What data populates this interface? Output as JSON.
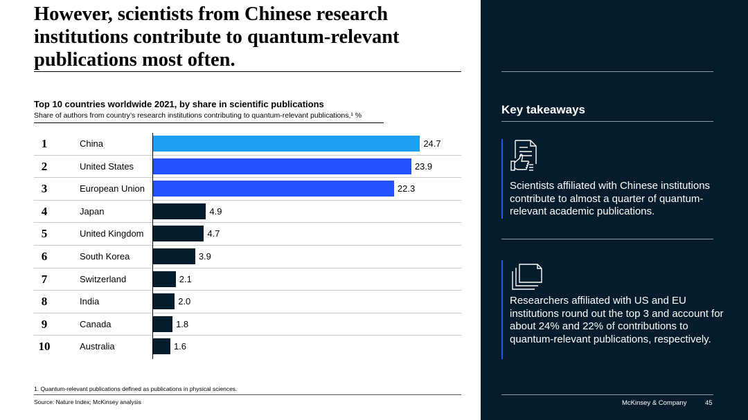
{
  "slide": {
    "headline": "However, scientists from Chinese research institutions contribute to quantum-relevant publications most often.",
    "footnote": "1.  Quantum-relevant publications defined as publications in physical sciences.",
    "source": "Source: Nature Index; McKinsey analysis",
    "brand": "McKinsey & Company",
    "page_number": "45"
  },
  "chart_data": {
    "type": "bar",
    "orientation": "horizontal",
    "title": "Top 10 countries worldwide 2021, by share in scientific publications",
    "subtitle": "Share of authors from country’s research institutions contributing to quantum-relevant publications,¹ %",
    "ranks": [
      "1",
      "2",
      "3",
      "4",
      "5",
      "6",
      "7",
      "8",
      "9",
      "10"
    ],
    "categories": [
      "China",
      "United States",
      "European Union",
      "Japan",
      "United Kingdom",
      "South Korea",
      "Switzerland",
      "India",
      "Canada",
      "Australia"
    ],
    "values": [
      24.7,
      23.9,
      22.3,
      4.9,
      4.7,
      3.9,
      2.1,
      2.0,
      1.8,
      1.6
    ],
    "value_labels": [
      "24.7",
      "23.9",
      "22.3",
      "4.9",
      "4.7",
      "3.9",
      "2.1",
      "2.0",
      "1.8",
      "1.6"
    ],
    "bar_colors": [
      "#1f9ff1",
      "#2251ff",
      "#2251ff",
      "#051c2c",
      "#051c2c",
      "#051c2c",
      "#051c2c",
      "#051c2c",
      "#051c2c",
      "#051c2c"
    ],
    "xlim": [
      0,
      25
    ]
  },
  "takeaways": {
    "heading": "Key takeaways",
    "items": [
      {
        "icon": "document-thumbs-up-icon",
        "text": "Scientists affiliated with Chinese institutions contribute to almost a quarter of quantum-relevant academic publications."
      },
      {
        "icon": "stacked-documents-icon",
        "text": "Researchers affiliated with US and EU institutions round out the top 3 and account for about 24% and 22% of contributions to quantum-relevant publications, respectively."
      }
    ]
  },
  "colors": {
    "panel_background": "#051c2c",
    "accent": "#2251ff",
    "highlight": "#1f9ff1"
  }
}
